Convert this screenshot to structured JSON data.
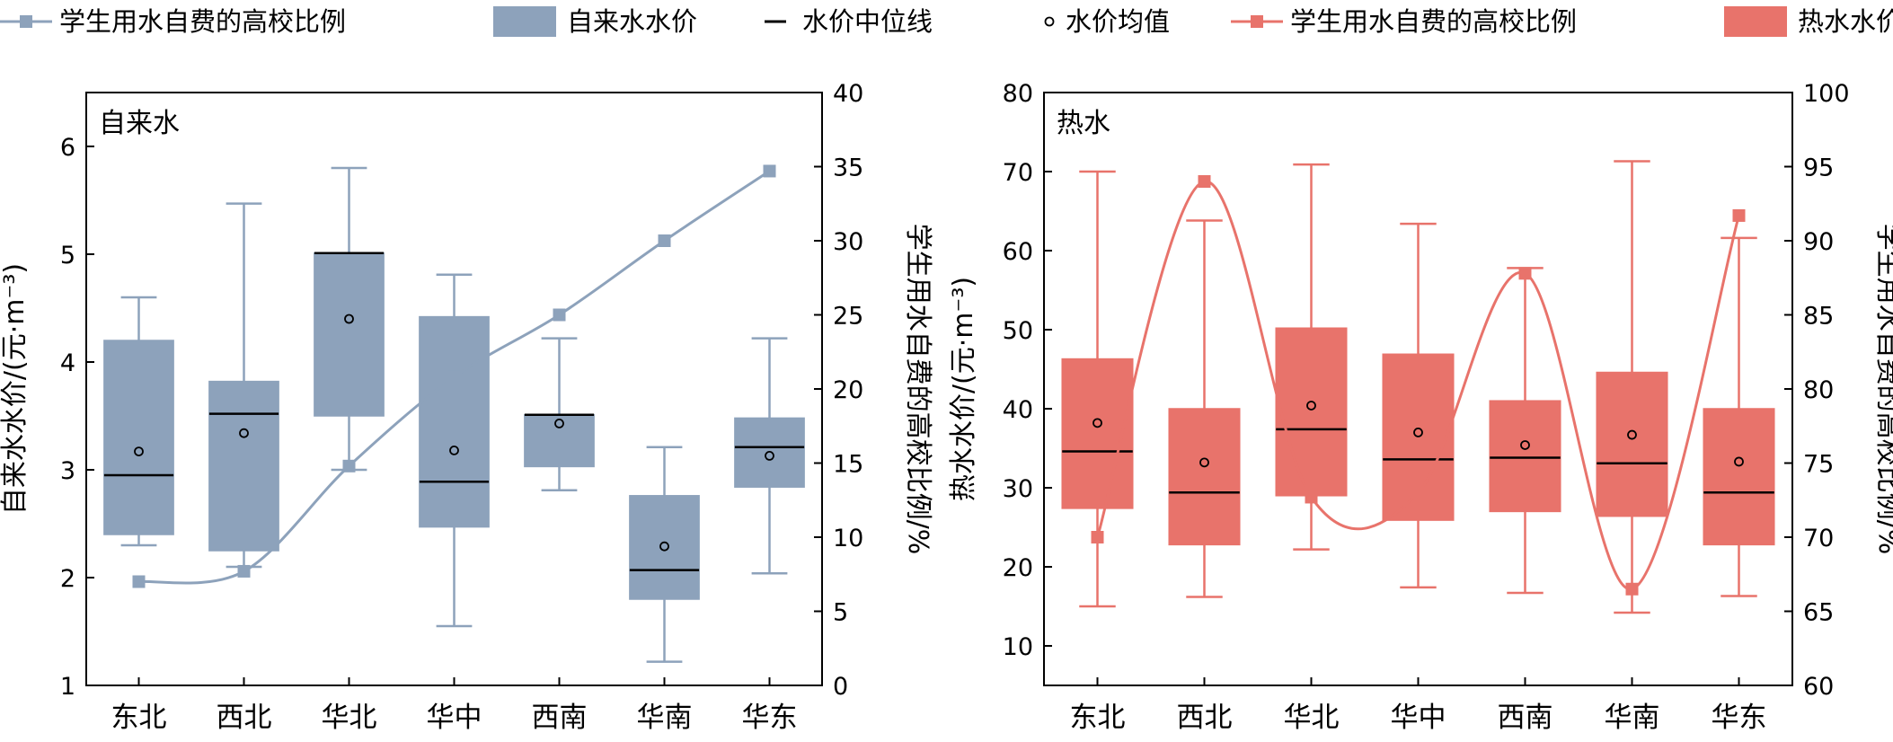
{
  "legend": [
    {
      "label": "学生用水自费的高校比例",
      "kind": "line-square",
      "color": "#8da2bb"
    },
    {
      "label": "自来水水价",
      "kind": "box",
      "color": "#8da2bb"
    },
    {
      "label": "水价中位线",
      "kind": "median"
    },
    {
      "label": "水价均值",
      "kind": "mean"
    },
    {
      "label": "学生用水自费的高校比例",
      "kind": "line-square",
      "color": "#e8736b"
    },
    {
      "label": "热水水价",
      "kind": "box",
      "color": "#e8736b"
    }
  ],
  "chart_data": [
    {
      "type": "box+line",
      "title": "自来水",
      "color": "#8da2bb",
      "ylabel": "自来水水价/(元·m⁻³)",
      "y2label": "学生用水自费的高校比例/%",
      "ylim": [
        1,
        6.5
      ],
      "yticks": [
        "1",
        "2",
        "3",
        "4",
        "5",
        "6"
      ],
      "y2lim": [
        0,
        40
      ],
      "y2ticks": [
        "0",
        "5",
        "10",
        "15",
        "20",
        "25",
        "30",
        "35",
        "40"
      ],
      "categories": [
        "东北",
        "西北",
        "华北",
        "华中",
        "西南",
        "华南",
        "华东"
      ],
      "boxes": [
        {
          "min": 2.3,
          "q1": 2.4,
          "median": 2.95,
          "q3": 4.2,
          "max": 4.6,
          "mean": 3.17
        },
        {
          "min": 2.1,
          "q1": 2.25,
          "median": 3.52,
          "q3": 3.82,
          "max": 5.47,
          "mean": 3.34
        },
        {
          "min": 3.0,
          "q1": 3.5,
          "median": 5.01,
          "q3": 5.01,
          "max": 5.8,
          "mean": 4.4
        },
        {
          "min": 1.55,
          "q1": 2.47,
          "median": 2.89,
          "q3": 4.42,
          "max": 4.81,
          "mean": 3.18
        },
        {
          "min": 2.81,
          "q1": 3.03,
          "median": 3.51,
          "q3": 3.51,
          "max": 4.22,
          "mean": 3.43
        },
        {
          "min": 1.22,
          "q1": 1.8,
          "median": 2.07,
          "q3": 2.76,
          "max": 3.21,
          "mean": 2.29
        },
        {
          "min": 2.04,
          "q1": 2.84,
          "median": 3.21,
          "q3": 3.48,
          "max": 4.22,
          "mean": 3.13
        }
      ],
      "line_values": [
        7,
        7.7,
        14.8,
        20.8,
        25,
        30,
        34.7
      ]
    },
    {
      "type": "box+line",
      "title": "热水",
      "color": "#e8736b",
      "ylabel": "热水水价/(元·m⁻³)",
      "y2label": "学生用水自费的高校比例/%",
      "ylim": [
        5,
        80
      ],
      "yticks": [
        "10",
        "20",
        "30",
        "40",
        "50",
        "60",
        "70",
        "80"
      ],
      "y2lim": [
        60,
        100
      ],
      "y2ticks": [
        "60",
        "65",
        "70",
        "75",
        "80",
        "85",
        "90",
        "95",
        "100"
      ],
      "categories": [
        "东北",
        "西北",
        "华北",
        "华中",
        "西南",
        "华南",
        "华东"
      ],
      "boxes": [
        {
          "min": 15,
          "q1": 27.4,
          "median": 34.6,
          "q3": 46.3,
          "max": 70,
          "mean": 38.2
        },
        {
          "min": 16.2,
          "q1": 22.8,
          "median": 29.4,
          "q3": 40,
          "max": 63.8,
          "mean": 33.2
        },
        {
          "min": 22.2,
          "q1": 29,
          "median": 37.4,
          "q3": 50.2,
          "max": 70.9,
          "mean": 40.4
        },
        {
          "min": 17.4,
          "q1": 25.9,
          "median": 33.6,
          "q3": 46.9,
          "max": 63.4,
          "mean": 37
        },
        {
          "min": 16.7,
          "q1": 27,
          "median": 33.8,
          "q3": 41,
          "max": 57.8,
          "mean": 35.4
        },
        {
          "min": 14.2,
          "q1": 26.4,
          "median": 33.1,
          "q3": 44.6,
          "max": 71.3,
          "mean": 36.7
        },
        {
          "min": 16.3,
          "q1": 22.8,
          "median": 29.4,
          "q3": 40,
          "max": 61.6,
          "mean": 33.3
        }
      ],
      "line_values": [
        70,
        94,
        72.7,
        73,
        87.8,
        66.5,
        91.7
      ]
    }
  ]
}
